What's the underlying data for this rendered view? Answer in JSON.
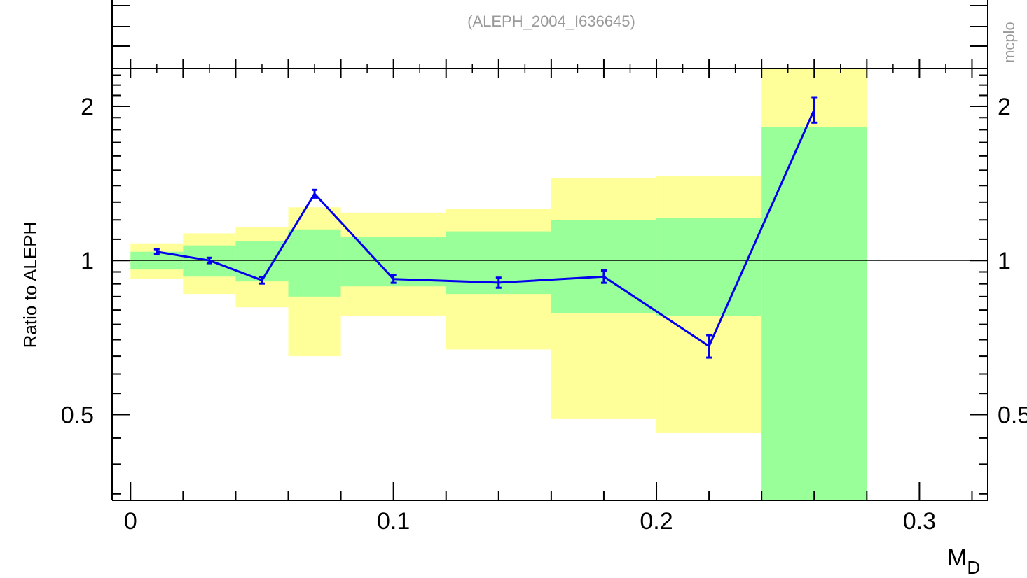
{
  "header": {
    "analysis_label": "(ALEPH_2004_I636645)",
    "side_label": "mcplo"
  },
  "colors": {
    "data_line": "#0000ee",
    "band_inner": "#99ff99",
    "band_outer": "#ffff99",
    "reference_line": "#000000",
    "header_text": "#999999"
  },
  "chart_data": {
    "type": "line",
    "title": "",
    "xlabel_main": "M",
    "xlabel_sub": "D",
    "ylabel": "Ratio to ALEPH",
    "xlim": [
      -0.007,
      0.326
    ],
    "ylim": [
      0.34,
      2.37
    ],
    "y_log_scale": true,
    "grid": false,
    "reference_value": 1,
    "x_ticks": [
      0,
      0.1,
      0.2,
      0.3
    ],
    "x_tick_labels": [
      "0",
      "0.1",
      "0.2",
      "0.3"
    ],
    "y_ticks": [
      0.5,
      1,
      2
    ],
    "y_tick_labels": [
      "0.5",
      "1",
      "2"
    ],
    "y_right_tick_labels": [
      "0.5",
      "1",
      "2"
    ],
    "bands": [
      {
        "x0": 0.0,
        "x1": 0.02,
        "inner": [
          0.96,
          1.04
        ],
        "outer": [
          0.92,
          1.08
        ]
      },
      {
        "x0": 0.02,
        "x1": 0.04,
        "inner": [
          0.93,
          1.07
        ],
        "outer": [
          0.86,
          1.13
        ]
      },
      {
        "x0": 0.04,
        "x1": 0.06,
        "inner": [
          0.91,
          1.09
        ],
        "outer": [
          0.81,
          1.16
        ]
      },
      {
        "x0": 0.06,
        "x1": 0.08,
        "inner": [
          0.85,
          1.15
        ],
        "outer": [
          0.65,
          1.27
        ]
      },
      {
        "x0": 0.08,
        "x1": 0.12,
        "inner": [
          0.89,
          1.11
        ],
        "outer": [
          0.78,
          1.24
        ]
      },
      {
        "x0": 0.12,
        "x1": 0.16,
        "inner": [
          0.86,
          1.14
        ],
        "outer": [
          0.67,
          1.26
        ]
      },
      {
        "x0": 0.16,
        "x1": 0.2,
        "inner": [
          0.79,
          1.2
        ],
        "outer": [
          0.49,
          1.45
        ]
      },
      {
        "x0": 0.2,
        "x1": 0.24,
        "inner": [
          0.78,
          1.21
        ],
        "outer": [
          0.46,
          1.46
        ]
      },
      {
        "x0": 0.24,
        "x1": 0.28,
        "inner": [
          0.34,
          1.82
        ],
        "outer": [
          0.34,
          2.37
        ]
      }
    ],
    "series": [
      {
        "x": [
          0.01,
          0.03,
          0.05,
          0.07,
          0.1,
          0.14,
          0.18,
          0.22,
          0.26
        ],
        "y": [
          1.04,
          1.0,
          0.915,
          1.35,
          0.92,
          0.905,
          0.93,
          0.68,
          1.97
        ],
        "yerr": [
          0.005,
          0.006,
          0.008,
          0.015,
          0.01,
          0.015,
          0.02,
          0.03,
          0.1
        ]
      }
    ]
  }
}
